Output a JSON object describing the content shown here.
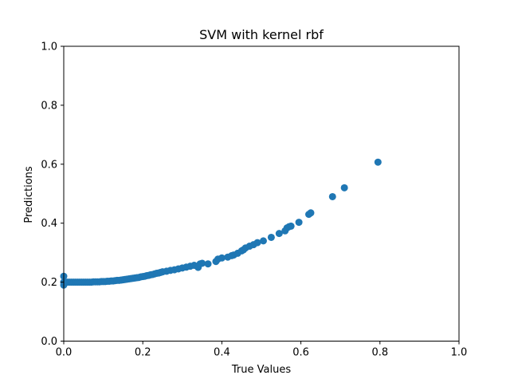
{
  "chart_data": {
    "type": "scatter",
    "title": "SVM with kernel rbf",
    "xlabel": "True Values",
    "ylabel": "Predictions",
    "xlim": [
      0.0,
      1.0
    ],
    "ylim": [
      0.0,
      1.0
    ],
    "xticks": [
      "0.0",
      "0.2",
      "0.4",
      "0.6",
      "0.8",
      "1.0"
    ],
    "yticks": [
      "0.0",
      "0.2",
      "0.4",
      "0.6",
      "0.8",
      "1.0"
    ],
    "grid": false,
    "marker_color": "#1f77b4",
    "points": [
      [
        0.0,
        0.19
      ],
      [
        0.0,
        0.2
      ],
      [
        0.0,
        0.22
      ],
      [
        0.005,
        0.2
      ],
      [
        0.01,
        0.2
      ],
      [
        0.015,
        0.2
      ],
      [
        0.02,
        0.2
      ],
      [
        0.025,
        0.2
      ],
      [
        0.03,
        0.2
      ],
      [
        0.035,
        0.2
      ],
      [
        0.04,
        0.2
      ],
      [
        0.045,
        0.2
      ],
      [
        0.05,
        0.2
      ],
      [
        0.055,
        0.2
      ],
      [
        0.06,
        0.2
      ],
      [
        0.065,
        0.2
      ],
      [
        0.07,
        0.2
      ],
      [
        0.075,
        0.201
      ],
      [
        0.08,
        0.201
      ],
      [
        0.085,
        0.201
      ],
      [
        0.09,
        0.201
      ],
      [
        0.095,
        0.202
      ],
      [
        0.1,
        0.202
      ],
      [
        0.105,
        0.202
      ],
      [
        0.11,
        0.203
      ],
      [
        0.115,
        0.203
      ],
      [
        0.12,
        0.204
      ],
      [
        0.125,
        0.204
      ],
      [
        0.13,
        0.205
      ],
      [
        0.135,
        0.206
      ],
      [
        0.14,
        0.206
      ],
      [
        0.145,
        0.207
      ],
      [
        0.15,
        0.208
      ],
      [
        0.155,
        0.209
      ],
      [
        0.16,
        0.21
      ],
      [
        0.165,
        0.211
      ],
      [
        0.17,
        0.212
      ],
      [
        0.175,
        0.213
      ],
      [
        0.18,
        0.214
      ],
      [
        0.185,
        0.215
      ],
      [
        0.19,
        0.216
      ],
      [
        0.195,
        0.218
      ],
      [
        0.2,
        0.219
      ],
      [
        0.205,
        0.22
      ],
      [
        0.21,
        0.222
      ],
      [
        0.215,
        0.223
      ],
      [
        0.22,
        0.225
      ],
      [
        0.225,
        0.226
      ],
      [
        0.23,
        0.228
      ],
      [
        0.235,
        0.23
      ],
      [
        0.24,
        0.231
      ],
      [
        0.245,
        0.233
      ],
      [
        0.25,
        0.235
      ],
      [
        0.26,
        0.237
      ],
      [
        0.27,
        0.24
      ],
      [
        0.28,
        0.242
      ],
      [
        0.29,
        0.245
      ],
      [
        0.3,
        0.248
      ],
      [
        0.31,
        0.251
      ],
      [
        0.32,
        0.254
      ],
      [
        0.33,
        0.257
      ],
      [
        0.34,
        0.25
      ],
      [
        0.345,
        0.262
      ],
      [
        0.35,
        0.264
      ],
      [
        0.365,
        0.262
      ],
      [
        0.385,
        0.27
      ],
      [
        0.39,
        0.278
      ],
      [
        0.4,
        0.282
      ],
      [
        0.415,
        0.285
      ],
      [
        0.425,
        0.29
      ],
      [
        0.43,
        0.292
      ],
      [
        0.44,
        0.298
      ],
      [
        0.45,
        0.306
      ],
      [
        0.455,
        0.31
      ],
      [
        0.46,
        0.316
      ],
      [
        0.47,
        0.322
      ],
      [
        0.48,
        0.327
      ],
      [
        0.49,
        0.334
      ],
      [
        0.505,
        0.34
      ],
      [
        0.525,
        0.352
      ],
      [
        0.545,
        0.365
      ],
      [
        0.56,
        0.374
      ],
      [
        0.565,
        0.384
      ],
      [
        0.57,
        0.388
      ],
      [
        0.575,
        0.39
      ],
      [
        0.595,
        0.403
      ],
      [
        0.62,
        0.43
      ],
      [
        0.625,
        0.435
      ],
      [
        0.68,
        0.49
      ],
      [
        0.71,
        0.52
      ],
      [
        0.795,
        0.607
      ]
    ]
  }
}
